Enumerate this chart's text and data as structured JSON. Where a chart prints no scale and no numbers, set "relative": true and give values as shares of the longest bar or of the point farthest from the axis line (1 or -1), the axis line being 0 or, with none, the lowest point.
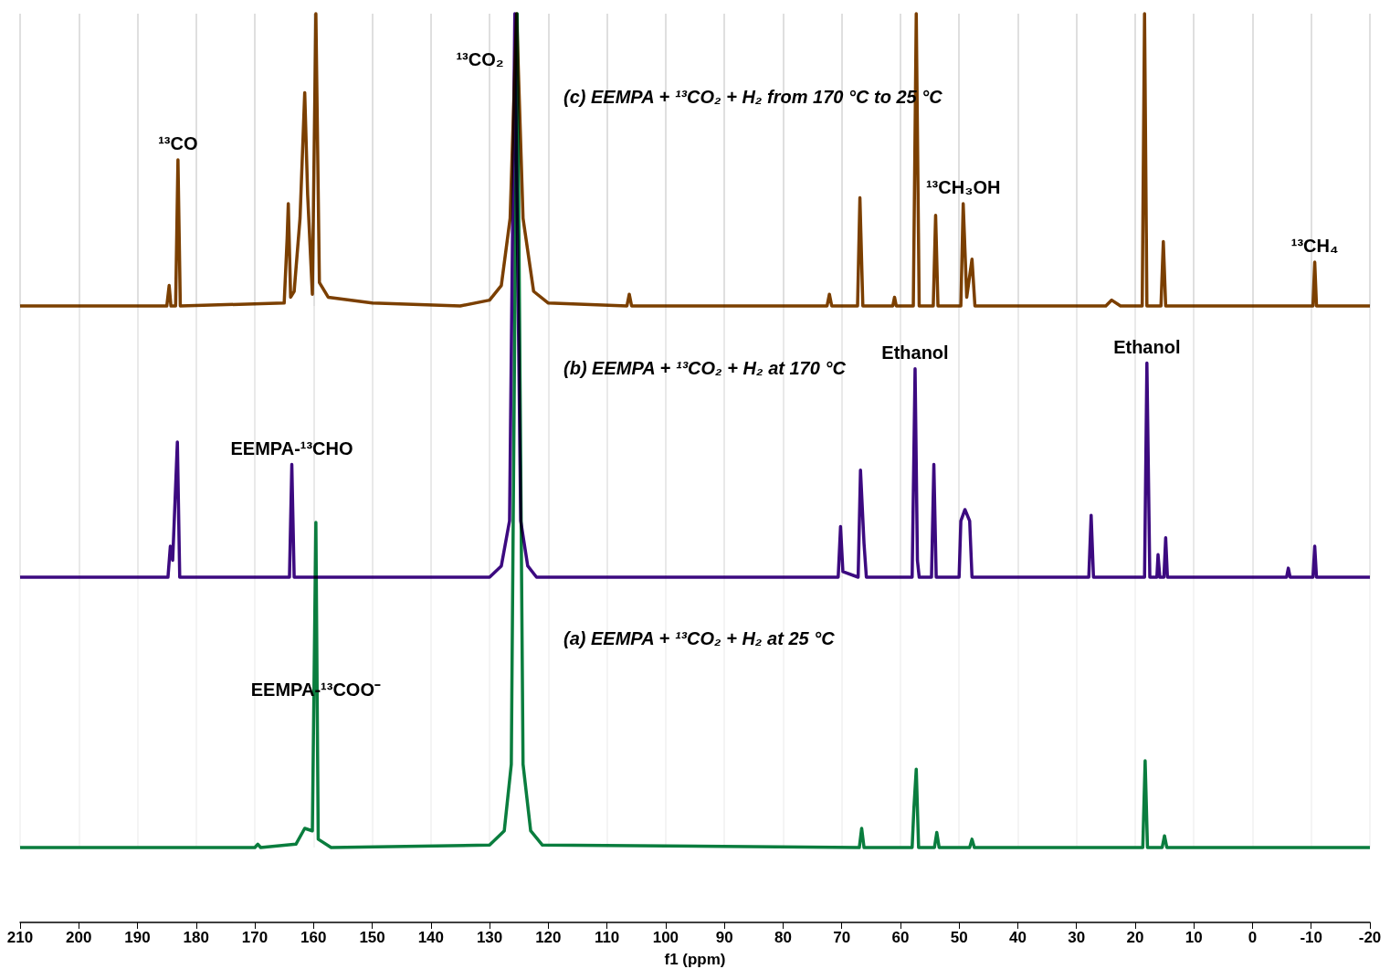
{
  "chart_data": [
    {
      "type": "line",
      "title": "(c) EEMPA + ¹³CO₂ + H₂ from 170 °C to 25 °C",
      "relative": true,
      "xlim": [
        210,
        -20
      ],
      "xticks": [
        210,
        200,
        190,
        180,
        170,
        160,
        150,
        140,
        130,
        120,
        110,
        100,
        90,
        80,
        70,
        60,
        50,
        40,
        30,
        20,
        10,
        0,
        -10,
        -20
      ],
      "grid": "x",
      "tick_labels": false,
      "x": [
        210,
        185.0,
        184.6,
        184.3,
        183.5,
        183.1,
        182.7,
        165.0,
        164.5,
        164.3,
        163.9,
        163.3,
        162.3,
        161.5,
        161.0,
        160.2,
        159.6,
        159.0,
        157.5,
        150,
        135,
        130,
        128,
        126.5,
        125.4,
        124.3,
        122.5,
        120,
        106.6,
        106.2,
        105.8,
        72.5,
        72.1,
        71.7,
        67.3,
        66.9,
        66.4,
        61.3,
        61,
        60.7,
        57.8,
        57.3,
        56.8,
        54.4,
        54.0,
        53.6,
        49.7,
        49.3,
        48.7,
        47.8,
        47.3,
        25,
        24,
        22.5,
        18.8,
        18.4,
        18.0,
        15.6,
        15.2,
        14.8,
        -10.3,
        -10.6,
        -10.9,
        -20
      ],
      "series": [
        {
          "color": "#7b3f00",
          "values": [
            0,
            0,
            0.07,
            0,
            0,
            0.5,
            0,
            0.01,
            0.23,
            0.35,
            0.03,
            0.05,
            0.3,
            0.73,
            0.38,
            0.04,
            1,
            0.08,
            0.03,
            0.01,
            0,
            0.02,
            0.07,
            0.3,
            1,
            0.3,
            0.05,
            0.01,
            0,
            0.04,
            0,
            0,
            0.04,
            0,
            0,
            0.37,
            0,
            0,
            0.03,
            0,
            0,
            1,
            0,
            0,
            0.31,
            0,
            0,
            0.35,
            0.03,
            0.16,
            0,
            0,
            0.02,
            0,
            0,
            1,
            0,
            0,
            0.22,
            0,
            0,
            0.15,
            0,
            0
          ]
        }
      ],
      "annotations": [
        {
          "text": "¹³CO",
          "x": 183.1,
          "y": 0.5
        },
        {
          "text": "¹³CO₂",
          "x": 125.4,
          "y": 1
        },
        {
          "text": "¹³CH₃OH",
          "x": 49.3,
          "y": 0.35
        },
        {
          "text": "¹³CH₄",
          "x": -10.6,
          "y": 0.15
        }
      ]
    },
    {
      "type": "line",
      "title": "(b) EEMPA + ¹³CO₂ + H₂ at 170 °C",
      "relative": true,
      "xlim": [
        210,
        -20
      ],
      "xticks": [
        210,
        200,
        190,
        180,
        170,
        160,
        150,
        140,
        130,
        120,
        110,
        100,
        90,
        80,
        70,
        60,
        50,
        40,
        30,
        20,
        10,
        0,
        -10,
        -20
      ],
      "grid": "x",
      "tick_labels": false,
      "x": [
        210,
        184.8,
        184.4,
        184.0,
        183.2,
        182.8,
        164.1,
        163.7,
        163.3,
        130,
        128,
        126.6,
        125.7,
        124.7,
        123.5,
        122,
        70.6,
        70.2,
        69.8,
        67.2,
        66.8,
        66.2,
        65.8,
        58,
        57.5,
        57.1,
        56.8,
        54.7,
        54.3,
        53.9,
        50,
        49.7,
        49.0,
        48.2,
        47.8,
        27.9,
        27.5,
        27.1,
        18.4,
        18.0,
        17.5,
        16.3,
        16.1,
        15.8,
        15.1,
        14.8,
        14.5,
        -5.8,
        -6.1,
        -6.4,
        -10.3,
        -10.6,
        -10.9,
        -20
      ],
      "series": [
        {
          "color": "#3c0a80",
          "values": [
            0,
            0,
            0.055,
            0.03,
            0.24,
            0,
            0,
            0.2,
            0,
            0,
            0.02,
            0.1,
            1,
            0.1,
            0.02,
            0,
            0,
            0.09,
            0.01,
            0,
            0.19,
            0.06,
            0,
            0,
            0.37,
            0.03,
            0,
            0,
            0.2,
            0,
            0,
            0.1,
            0.12,
            0.1,
            0,
            0,
            0.11,
            0,
            0,
            0.38,
            0,
            0,
            0.04,
            0,
            0,
            0.07,
            0,
            0,
            0.016,
            0,
            0,
            0.055,
            0,
            0
          ]
        }
      ],
      "annotations": [
        {
          "text": "EEMPA-¹³CHO",
          "x": 163.7,
          "y": 0.2
        },
        {
          "text": "Ethanol",
          "x": 57.5,
          "y": 0.37
        },
        {
          "text": "Ethanol",
          "x": 18.0,
          "y": 0.38
        }
      ]
    },
    {
      "type": "line",
      "title": "(a) EEMPA + ¹³CO₂ + H₂ at 25 °C",
      "relative": true,
      "xlim": [
        210,
        -20
      ],
      "xticks": [
        210,
        200,
        190,
        180,
        170,
        160,
        150,
        140,
        130,
        120,
        110,
        100,
        90,
        80,
        70,
        60,
        50,
        40,
        30,
        20,
        10,
        0,
        -10,
        -20
      ],
      "grid": "x",
      "xlabel": "f1 (ppm)",
      "x": [
        210,
        170,
        169.5,
        169,
        163,
        161.5,
        160.2,
        159.6,
        159.2,
        157,
        130,
        127.5,
        126.3,
        125.3,
        124.3,
        123,
        121,
        67,
        66.6,
        66.2,
        58,
        57.7,
        57.3,
        56.9,
        54.2,
        53.8,
        53.4,
        48.2,
        47.8,
        47.4,
        18.7,
        18.3,
        17.9,
        15.4,
        15,
        14.6,
        -20
      ],
      "series": [
        {
          "color": "#0a7d3e",
          "values": [
            0,
            0,
            0.004,
            0,
            0.004,
            0.023,
            0.02,
            0.39,
            0.01,
            0,
            0.003,
            0.02,
            0.1,
            1,
            0.1,
            0.02,
            0.003,
            0,
            0.023,
            0,
            0,
            0.047,
            0.094,
            0,
            0,
            0.018,
            0,
            0,
            0.01,
            0,
            0,
            0.104,
            0,
            0,
            0.014,
            0,
            0
          ]
        }
      ],
      "annotations": [
        {
          "text": "EEMPA-¹³COO⁻",
          "x": 159.6,
          "y": 0.17
        }
      ]
    }
  ]
}
